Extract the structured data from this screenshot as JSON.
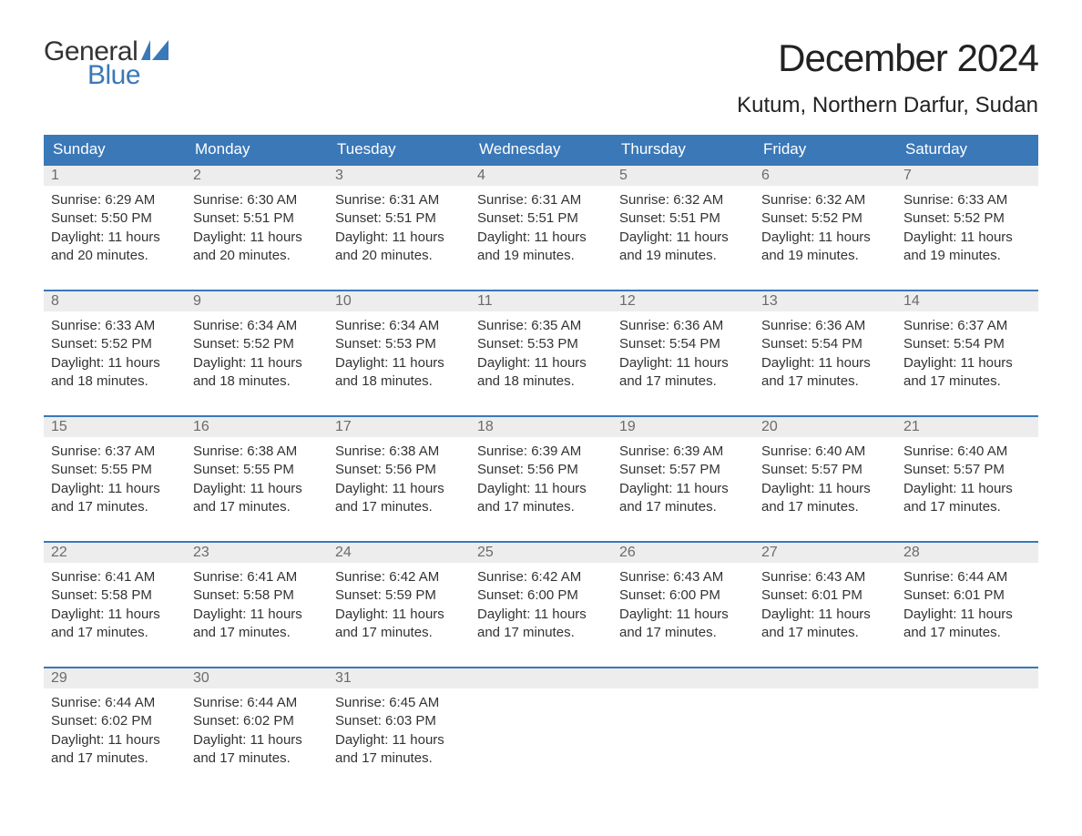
{
  "brand": {
    "part1": "General",
    "part2": "Blue",
    "flag_color": "#3a78b8"
  },
  "title": "December 2024",
  "location": "Kutum, Northern Darfur, Sudan",
  "colors": {
    "header_bg": "#3a78b8",
    "header_text": "#ffffff",
    "daynum_bg": "#ededed",
    "daynum_text": "#6b6b6b",
    "body_text": "#333333",
    "week_border": "#3a78b8",
    "page_bg": "#ffffff"
  },
  "typography": {
    "title_fontsize": 42,
    "location_fontsize": 24,
    "dow_fontsize": 17,
    "daynum_fontsize": 16,
    "body_fontsize": 15
  },
  "days_of_week": [
    "Sunday",
    "Monday",
    "Tuesday",
    "Wednesday",
    "Thursday",
    "Friday",
    "Saturday"
  ],
  "weeks": [
    [
      {
        "n": "1",
        "sunrise": "Sunrise: 6:29 AM",
        "sunset": "Sunset: 5:50 PM",
        "day1": "Daylight: 11 hours",
        "day2": "and 20 minutes."
      },
      {
        "n": "2",
        "sunrise": "Sunrise: 6:30 AM",
        "sunset": "Sunset: 5:51 PM",
        "day1": "Daylight: 11 hours",
        "day2": "and 20 minutes."
      },
      {
        "n": "3",
        "sunrise": "Sunrise: 6:31 AM",
        "sunset": "Sunset: 5:51 PM",
        "day1": "Daylight: 11 hours",
        "day2": "and 20 minutes."
      },
      {
        "n": "4",
        "sunrise": "Sunrise: 6:31 AM",
        "sunset": "Sunset: 5:51 PM",
        "day1": "Daylight: 11 hours",
        "day2": "and 19 minutes."
      },
      {
        "n": "5",
        "sunrise": "Sunrise: 6:32 AM",
        "sunset": "Sunset: 5:51 PM",
        "day1": "Daylight: 11 hours",
        "day2": "and 19 minutes."
      },
      {
        "n": "6",
        "sunrise": "Sunrise: 6:32 AM",
        "sunset": "Sunset: 5:52 PM",
        "day1": "Daylight: 11 hours",
        "day2": "and 19 minutes."
      },
      {
        "n": "7",
        "sunrise": "Sunrise: 6:33 AM",
        "sunset": "Sunset: 5:52 PM",
        "day1": "Daylight: 11 hours",
        "day2": "and 19 minutes."
      }
    ],
    [
      {
        "n": "8",
        "sunrise": "Sunrise: 6:33 AM",
        "sunset": "Sunset: 5:52 PM",
        "day1": "Daylight: 11 hours",
        "day2": "and 18 minutes."
      },
      {
        "n": "9",
        "sunrise": "Sunrise: 6:34 AM",
        "sunset": "Sunset: 5:52 PM",
        "day1": "Daylight: 11 hours",
        "day2": "and 18 minutes."
      },
      {
        "n": "10",
        "sunrise": "Sunrise: 6:34 AM",
        "sunset": "Sunset: 5:53 PM",
        "day1": "Daylight: 11 hours",
        "day2": "and 18 minutes."
      },
      {
        "n": "11",
        "sunrise": "Sunrise: 6:35 AM",
        "sunset": "Sunset: 5:53 PM",
        "day1": "Daylight: 11 hours",
        "day2": "and 18 minutes."
      },
      {
        "n": "12",
        "sunrise": "Sunrise: 6:36 AM",
        "sunset": "Sunset: 5:54 PM",
        "day1": "Daylight: 11 hours",
        "day2": "and 17 minutes."
      },
      {
        "n": "13",
        "sunrise": "Sunrise: 6:36 AM",
        "sunset": "Sunset: 5:54 PM",
        "day1": "Daylight: 11 hours",
        "day2": "and 17 minutes."
      },
      {
        "n": "14",
        "sunrise": "Sunrise: 6:37 AM",
        "sunset": "Sunset: 5:54 PM",
        "day1": "Daylight: 11 hours",
        "day2": "and 17 minutes."
      }
    ],
    [
      {
        "n": "15",
        "sunrise": "Sunrise: 6:37 AM",
        "sunset": "Sunset: 5:55 PM",
        "day1": "Daylight: 11 hours",
        "day2": "and 17 minutes."
      },
      {
        "n": "16",
        "sunrise": "Sunrise: 6:38 AM",
        "sunset": "Sunset: 5:55 PM",
        "day1": "Daylight: 11 hours",
        "day2": "and 17 minutes."
      },
      {
        "n": "17",
        "sunrise": "Sunrise: 6:38 AM",
        "sunset": "Sunset: 5:56 PM",
        "day1": "Daylight: 11 hours",
        "day2": "and 17 minutes."
      },
      {
        "n": "18",
        "sunrise": "Sunrise: 6:39 AM",
        "sunset": "Sunset: 5:56 PM",
        "day1": "Daylight: 11 hours",
        "day2": "and 17 minutes."
      },
      {
        "n": "19",
        "sunrise": "Sunrise: 6:39 AM",
        "sunset": "Sunset: 5:57 PM",
        "day1": "Daylight: 11 hours",
        "day2": "and 17 minutes."
      },
      {
        "n": "20",
        "sunrise": "Sunrise: 6:40 AM",
        "sunset": "Sunset: 5:57 PM",
        "day1": "Daylight: 11 hours",
        "day2": "and 17 minutes."
      },
      {
        "n": "21",
        "sunrise": "Sunrise: 6:40 AM",
        "sunset": "Sunset: 5:57 PM",
        "day1": "Daylight: 11 hours",
        "day2": "and 17 minutes."
      }
    ],
    [
      {
        "n": "22",
        "sunrise": "Sunrise: 6:41 AM",
        "sunset": "Sunset: 5:58 PM",
        "day1": "Daylight: 11 hours",
        "day2": "and 17 minutes."
      },
      {
        "n": "23",
        "sunrise": "Sunrise: 6:41 AM",
        "sunset": "Sunset: 5:58 PM",
        "day1": "Daylight: 11 hours",
        "day2": "and 17 minutes."
      },
      {
        "n": "24",
        "sunrise": "Sunrise: 6:42 AM",
        "sunset": "Sunset: 5:59 PM",
        "day1": "Daylight: 11 hours",
        "day2": "and 17 minutes."
      },
      {
        "n": "25",
        "sunrise": "Sunrise: 6:42 AM",
        "sunset": "Sunset: 6:00 PM",
        "day1": "Daylight: 11 hours",
        "day2": "and 17 minutes."
      },
      {
        "n": "26",
        "sunrise": "Sunrise: 6:43 AM",
        "sunset": "Sunset: 6:00 PM",
        "day1": "Daylight: 11 hours",
        "day2": "and 17 minutes."
      },
      {
        "n": "27",
        "sunrise": "Sunrise: 6:43 AM",
        "sunset": "Sunset: 6:01 PM",
        "day1": "Daylight: 11 hours",
        "day2": "and 17 minutes."
      },
      {
        "n": "28",
        "sunrise": "Sunrise: 6:44 AM",
        "sunset": "Sunset: 6:01 PM",
        "day1": "Daylight: 11 hours",
        "day2": "and 17 minutes."
      }
    ],
    [
      {
        "n": "29",
        "sunrise": "Sunrise: 6:44 AM",
        "sunset": "Sunset: 6:02 PM",
        "day1": "Daylight: 11 hours",
        "day2": "and 17 minutes."
      },
      {
        "n": "30",
        "sunrise": "Sunrise: 6:44 AM",
        "sunset": "Sunset: 6:02 PM",
        "day1": "Daylight: 11 hours",
        "day2": "and 17 minutes."
      },
      {
        "n": "31",
        "sunrise": "Sunrise: 6:45 AM",
        "sunset": "Sunset: 6:03 PM",
        "day1": "Daylight: 11 hours",
        "day2": "and 17 minutes."
      },
      null,
      null,
      null,
      null
    ]
  ]
}
